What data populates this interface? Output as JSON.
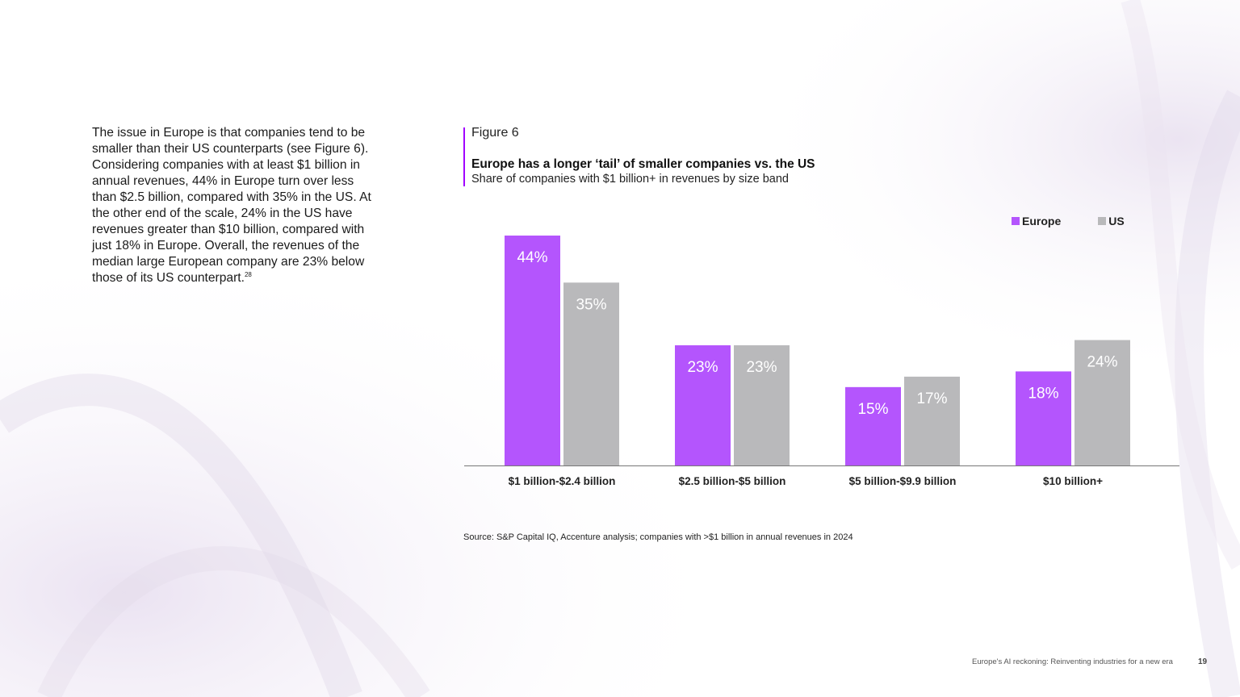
{
  "body_text": {
    "paragraph": "The issue in Europe is that companies tend to be smaller than their US counterparts (see Figure 6). Considering companies with at least $1 billion in annual revenues, 44% in Europe turn over less than $2.5 billion, compared with 35% in the US. At the other end of the scale, 24% in the US have revenues greater than $10 billion, compared with just 18% in Europe. Overall, the revenues of the median large European company are 23% below those of its US counterpart.",
    "footnote": "28"
  },
  "figure": {
    "label": "Figure 6",
    "title": "Europe has a longer ‘tail’ of smaller companies vs. the US",
    "subtitle": "Share of companies with $1 billion+ in revenues by size band"
  },
  "chart_data": {
    "type": "bar",
    "title": "Europe has a longer ‘tail’ of smaller companies vs. the US",
    "subtitle": "Share of companies with $1 billion+ in revenues by size band",
    "categories": [
      "$1 billion-$2.4 billion",
      "$2.5 billion-$5 billion",
      "$5 billion-$9.9 billion",
      "$10 billion+"
    ],
    "series": [
      {
        "name": "Europe",
        "values": [
          44,
          23,
          15,
          18
        ],
        "color": "#b455fd"
      },
      {
        "name": "US",
        "values": [
          35,
          23,
          17,
          24
        ],
        "color": "#b9b9bb"
      }
    ],
    "value_suffix": "%",
    "ylim": [
      0,
      44
    ],
    "grid": false,
    "legend": "top-right"
  },
  "source": "Source: S&P Capital IQ, Accenture analysis; companies with >$1 billion in annual revenues in 2024",
  "footer": {
    "title": "Europe's AI reckoning: Reinventing industries for a new era",
    "page": "19"
  },
  "colors": {
    "accent": "#a100ff",
    "europe": "#b455fd",
    "us": "#b9b9bb",
    "bar_label": "#ffffff"
  }
}
